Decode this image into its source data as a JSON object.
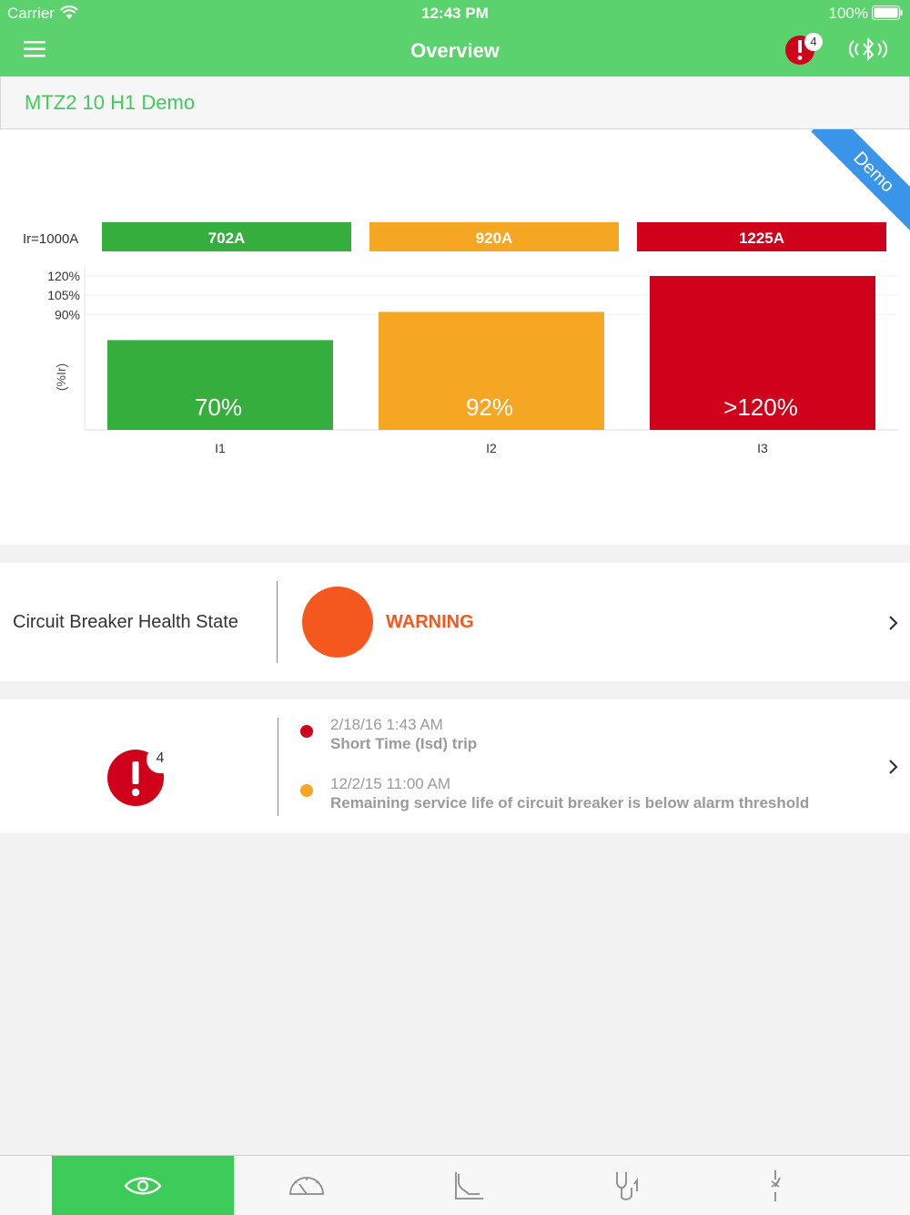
{
  "status_bar": {
    "carrier": "Carrier",
    "time": "12:43 PM",
    "battery": "100%"
  },
  "nav": {
    "title": "Overview",
    "alarm_count": "4"
  },
  "device": {
    "name": "MTZ2 10 H1 Demo"
  },
  "ribbon": {
    "label": "Demo"
  },
  "chart_data": {
    "type": "bar",
    "title": "",
    "ir_label": "Ir=1000A",
    "categories": [
      "I1",
      "I2",
      "I3"
    ],
    "current_labels": [
      "702A",
      "920A",
      "1225A"
    ],
    "value_labels": [
      "70%",
      "92%",
      ">120%"
    ],
    "values": [
      70,
      92,
      120
    ],
    "colors": [
      "#36ae3e",
      "#f5a623",
      "#d0021b"
    ],
    "ylabel": "(%Ir)",
    "yticks": [
      {
        "value": 120,
        "label": "120%"
      },
      {
        "value": 105,
        "label": "105%"
      },
      {
        "value": 90,
        "label": "90%"
      }
    ],
    "ylim": [
      0,
      120
    ]
  },
  "health": {
    "label": "Circuit Breaker Health State",
    "status": "WARNING",
    "color": "#f5581f"
  },
  "alarms": {
    "count": "4",
    "events": [
      {
        "date": "2/18/16 1:43 AM",
        "description": "Short Time (Isd) trip",
        "color": "#d0021b"
      },
      {
        "date": "12/2/15 11:00 AM",
        "description": "Remaining service life of circuit breaker is below alarm threshold",
        "color": "#f5a623"
      }
    ]
  },
  "tabs": [
    {
      "icon": "eye-icon",
      "active": true
    },
    {
      "icon": "gauge-icon",
      "active": false
    },
    {
      "icon": "curve-icon",
      "active": false
    },
    {
      "icon": "stethoscope-icon",
      "active": false
    },
    {
      "icon": "switch-icon",
      "active": false
    }
  ]
}
